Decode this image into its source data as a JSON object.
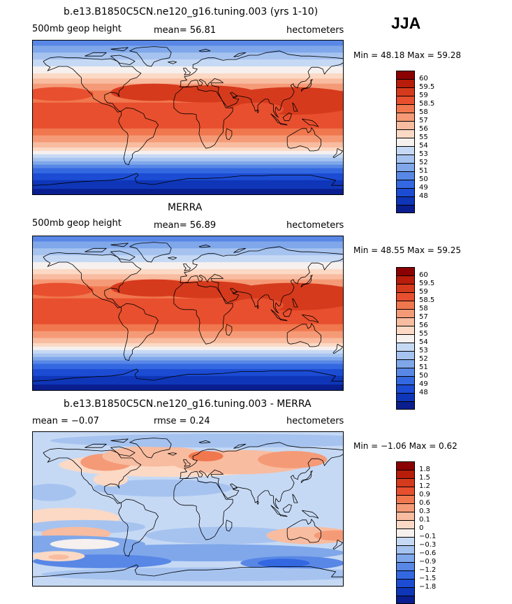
{
  "season": "JJA",
  "panels": [
    {
      "title": "b.e13.B1850C5CN.ne120_g16.tuning.003 (yrs 1-10)",
      "left_label": "500mb geop height",
      "center_label": "mean=   56.81",
      "units": "hectometers",
      "minmax": "Min =   48.18  Max =   59.28",
      "map_type": "absolute",
      "colorbar": {
        "colors": [
          "#8b0000",
          "#b81c0a",
          "#d63a1c",
          "#e84f2e",
          "#f0774e",
          "#f59a77",
          "#f8bca0",
          "#fbd9c5",
          "#f6f0ee",
          "#c6d9f4",
          "#a6c3f0",
          "#7fa7ea",
          "#5887e6",
          "#3368e1",
          "#1c4cd4",
          "#0f36b8",
          "#0a1e8f"
        ],
        "labels": [
          "60",
          "59.5",
          "59",
          "58.5",
          "58",
          "57",
          "56",
          "55",
          "54",
          "53",
          "52",
          "51",
          "50",
          "49",
          "48"
        ]
      }
    },
    {
      "title": "MERRA",
      "left_label": "500mb geop height",
      "center_label": "mean=   56.89",
      "units": "hectometers",
      "minmax": "Min =   48.55  Max =   59.25",
      "map_type": "absolute",
      "colorbar": {
        "colors": [
          "#8b0000",
          "#b81c0a",
          "#d63a1c",
          "#e84f2e",
          "#f0774e",
          "#f59a77",
          "#f8bca0",
          "#fbd9c5",
          "#f6f0ee",
          "#c6d9f4",
          "#a6c3f0",
          "#7fa7ea",
          "#5887e6",
          "#3368e1",
          "#1c4cd4",
          "#0f36b8",
          "#0a1e8f"
        ],
        "labels": [
          "60",
          "59.5",
          "59",
          "58.5",
          "58",
          "57",
          "56",
          "55",
          "54",
          "53",
          "52",
          "51",
          "50",
          "49",
          "48"
        ]
      }
    },
    {
      "title": "b.e13.B1850C5CN.ne120_g16.tuning.003 - MERRA",
      "left_label": "mean =   −0.07",
      "center_label": "rmse =     0.24",
      "units": "hectometers",
      "minmax": "Min =   −1.06  Max =     0.62",
      "map_type": "difference",
      "colorbar": {
        "colors": [
          "#8b0000",
          "#b81c0a",
          "#d63a1c",
          "#e84f2e",
          "#f0774e",
          "#f59a77",
          "#f8bca0",
          "#fbd9c5",
          "#f6f0ee",
          "#c6d9f4",
          "#a6c3f0",
          "#7fa7ea",
          "#5887e6",
          "#3368e1",
          "#1c4cd4",
          "#0f36b8",
          "#0a1e8f"
        ],
        "labels": [
          "1.8",
          "1.5",
          "1.2",
          "0.9",
          "0.6",
          "0.3",
          "0.1",
          "0",
          "−0.1",
          "−0.3",
          "−0.6",
          "−0.9",
          "−1.2",
          "−1.5",
          "−1.8"
        ]
      }
    }
  ]
}
